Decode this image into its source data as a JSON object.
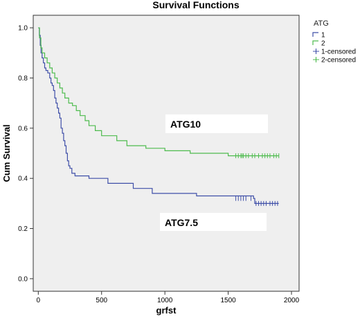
{
  "chart_data": {
    "type": "line",
    "title": "Survival Functions",
    "xlabel": "grfst",
    "ylabel": "Cum Survival",
    "xlim": [
      -40,
      2060
    ],
    "ylim": [
      -0.05,
      1.05
    ],
    "xticks": [
      0,
      500,
      1000,
      1500,
      2000
    ],
    "yticks": [
      0.0,
      0.2,
      0.4,
      0.6,
      0.8,
      1.0
    ],
    "grid": false,
    "legend": {
      "title": "ATG",
      "position": "top-right-outside",
      "entries": [
        {
          "label": "1",
          "color": "#3f4fa8",
          "symbol": "step"
        },
        {
          "label": "2",
          "color": "#4dbb4d",
          "symbol": "step"
        },
        {
          "label": "1-censored",
          "color": "#3f4fa8",
          "symbol": "plus"
        },
        {
          "label": "2-censored",
          "color": "#4dbb4d",
          "symbol": "plus"
        }
      ]
    },
    "series": [
      {
        "name": "1",
        "color": "#3f4fa8",
        "step_points": [
          [
            0,
            1.0
          ],
          [
            8,
            0.97
          ],
          [
            15,
            0.93
          ],
          [
            22,
            0.9
          ],
          [
            30,
            0.88
          ],
          [
            40,
            0.86
          ],
          [
            50,
            0.84
          ],
          [
            60,
            0.83
          ],
          [
            75,
            0.82
          ],
          [
            90,
            0.8
          ],
          [
            100,
            0.78
          ],
          [
            110,
            0.77
          ],
          [
            120,
            0.75
          ],
          [
            130,
            0.72
          ],
          [
            140,
            0.7
          ],
          [
            150,
            0.68
          ],
          [
            160,
            0.66
          ],
          [
            170,
            0.64
          ],
          [
            180,
            0.6
          ],
          [
            190,
            0.58
          ],
          [
            200,
            0.55
          ],
          [
            210,
            0.53
          ],
          [
            220,
            0.5
          ],
          [
            230,
            0.47
          ],
          [
            240,
            0.45
          ],
          [
            250,
            0.44
          ],
          [
            265,
            0.42
          ],
          [
            290,
            0.41
          ],
          [
            330,
            0.41
          ],
          [
            400,
            0.4
          ],
          [
            550,
            0.38
          ],
          [
            750,
            0.36
          ],
          [
            900,
            0.34
          ],
          [
            1250,
            0.33
          ],
          [
            1700,
            0.32
          ],
          [
            1710,
            0.3
          ],
          [
            1900,
            0.3
          ]
        ],
        "censored": [
          [
            1560,
            0.32
          ],
          [
            1580,
            0.32
          ],
          [
            1600,
            0.32
          ],
          [
            1620,
            0.32
          ],
          [
            1640,
            0.32
          ],
          [
            1680,
            0.32
          ],
          [
            1720,
            0.3
          ],
          [
            1740,
            0.3
          ],
          [
            1760,
            0.3
          ],
          [
            1780,
            0.3
          ],
          [
            1800,
            0.3
          ],
          [
            1830,
            0.3
          ],
          [
            1850,
            0.3
          ],
          [
            1870,
            0.3
          ],
          [
            1890,
            0.3
          ]
        ]
      },
      {
        "name": "2",
        "color": "#4dbb4d",
        "step_points": [
          [
            0,
            1.0
          ],
          [
            10,
            0.96
          ],
          [
            20,
            0.92
          ],
          [
            30,
            0.9
          ],
          [
            50,
            0.88
          ],
          [
            70,
            0.86
          ],
          [
            90,
            0.84
          ],
          [
            110,
            0.82
          ],
          [
            130,
            0.8
          ],
          [
            150,
            0.78
          ],
          [
            170,
            0.76
          ],
          [
            190,
            0.74
          ],
          [
            210,
            0.72
          ],
          [
            240,
            0.7
          ],
          [
            270,
            0.69
          ],
          [
            300,
            0.67
          ],
          [
            330,
            0.65
          ],
          [
            370,
            0.63
          ],
          [
            400,
            0.61
          ],
          [
            450,
            0.59
          ],
          [
            500,
            0.57
          ],
          [
            620,
            0.55
          ],
          [
            700,
            0.53
          ],
          [
            850,
            0.52
          ],
          [
            1000,
            0.51
          ],
          [
            1200,
            0.5
          ],
          [
            1500,
            0.49
          ],
          [
            1900,
            0.49
          ]
        ],
        "censored": [
          [
            1560,
            0.49
          ],
          [
            1580,
            0.49
          ],
          [
            1600,
            0.49
          ],
          [
            1610,
            0.49
          ],
          [
            1620,
            0.49
          ],
          [
            1640,
            0.49
          ],
          [
            1660,
            0.49
          ],
          [
            1690,
            0.49
          ],
          [
            1710,
            0.49
          ],
          [
            1740,
            0.49
          ],
          [
            1770,
            0.49
          ],
          [
            1790,
            0.49
          ],
          [
            1810,
            0.49
          ],
          [
            1830,
            0.49
          ],
          [
            1860,
            0.49
          ],
          [
            1880,
            0.49
          ],
          [
            1900,
            0.49
          ]
        ]
      }
    ],
    "annotations": [
      {
        "text": "ATG10"
      },
      {
        "text": "ATG7.5"
      }
    ]
  }
}
